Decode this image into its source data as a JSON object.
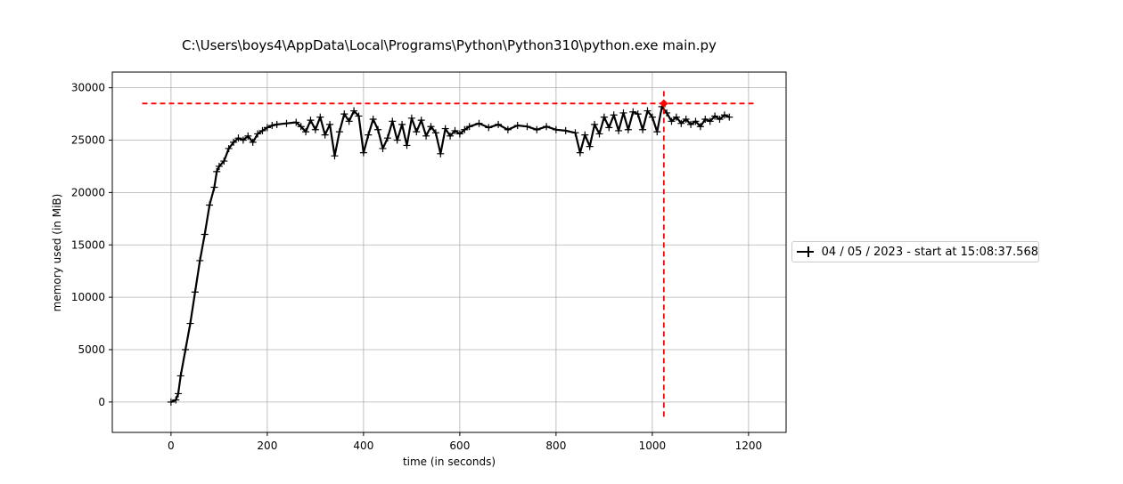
{
  "chart_data": {
    "type": "line",
    "title": "C:\\Users\\boys4\\AppData\\Local\\Programs\\Python\\Python310\\python.exe main.py",
    "xlabel": "time (in seconds)",
    "ylabel": "memory used (in MiB)",
    "xlim": [
      -122,
      1278
    ],
    "ylim": [
      -2900,
      31500
    ],
    "xticks": [
      0,
      200,
      400,
      600,
      800,
      1000,
      1200
    ],
    "yticks": [
      0,
      5000,
      10000,
      15000,
      20000,
      25000,
      30000
    ],
    "grid": true,
    "legend_position": "right, outside plot",
    "series": [
      {
        "name": "04 / 05 / 2023 - start at 15:08:37.568",
        "color": "#000000",
        "marker": "+",
        "x": [
          0,
          10,
          15,
          20,
          30,
          40,
          50,
          60,
          70,
          80,
          90,
          95,
          100,
          110,
          120,
          130,
          140,
          150,
          160,
          170,
          180,
          190,
          200,
          210,
          220,
          240,
          260,
          270,
          280,
          290,
          300,
          310,
          320,
          330,
          340,
          350,
          360,
          370,
          380,
          390,
          400,
          410,
          420,
          430,
          440,
          450,
          460,
          470,
          480,
          490,
          500,
          510,
          520,
          530,
          540,
          550,
          560,
          570,
          580,
          590,
          600,
          610,
          620,
          640,
          660,
          680,
          700,
          720,
          740,
          760,
          780,
          800,
          820,
          840,
          850,
          860,
          870,
          880,
          890,
          900,
          910,
          920,
          930,
          940,
          950,
          960,
          970,
          980,
          990,
          1000,
          1010,
          1020,
          1030,
          1040,
          1050,
          1060,
          1070,
          1080,
          1090,
          1100,
          1110,
          1120,
          1130,
          1140,
          1150,
          1160
        ],
        "y": [
          0,
          200,
          800,
          2500,
          5000,
          7500,
          10500,
          13500,
          16000,
          18800,
          20500,
          22000,
          22500,
          23000,
          24200,
          24800,
          25200,
          25000,
          25400,
          24800,
          25600,
          25900,
          26200,
          26400,
          26500,
          26600,
          26700,
          26300,
          25800,
          26900,
          26000,
          27200,
          25500,
          26500,
          23500,
          25800,
          27500,
          26800,
          27800,
          27300,
          23800,
          25500,
          27000,
          26000,
          24200,
          25200,
          26800,
          25000,
          26500,
          24500,
          27100,
          25800,
          26900,
          25400,
          26300,
          25700,
          23700,
          26100,
          25400,
          25900,
          25600,
          26000,
          26300,
          26600,
          26200,
          26500,
          26000,
          26400,
          26300,
          26000,
          26300,
          26000,
          25900,
          25700,
          23800,
          25500,
          24400,
          26500,
          25600,
          27200,
          26200,
          27400,
          25900,
          27600,
          26000,
          27700,
          27500,
          26000,
          27800,
          27200,
          25800,
          28200,
          27600,
          26800,
          27200,
          26600,
          27000,
          26500,
          26800,
          26300,
          27000,
          26800,
          27300,
          27000,
          27400,
          27200
        ]
      }
    ],
    "annotations": {
      "peak_hline_y": 28500,
      "peak_hline_x": [
        -60,
        1215
      ],
      "peak_vline_x": 1024,
      "peak_vline_y": [
        -1400,
        30000
      ],
      "peak_point": [
        1024,
        28500
      ],
      "color": "#ff0000"
    }
  }
}
